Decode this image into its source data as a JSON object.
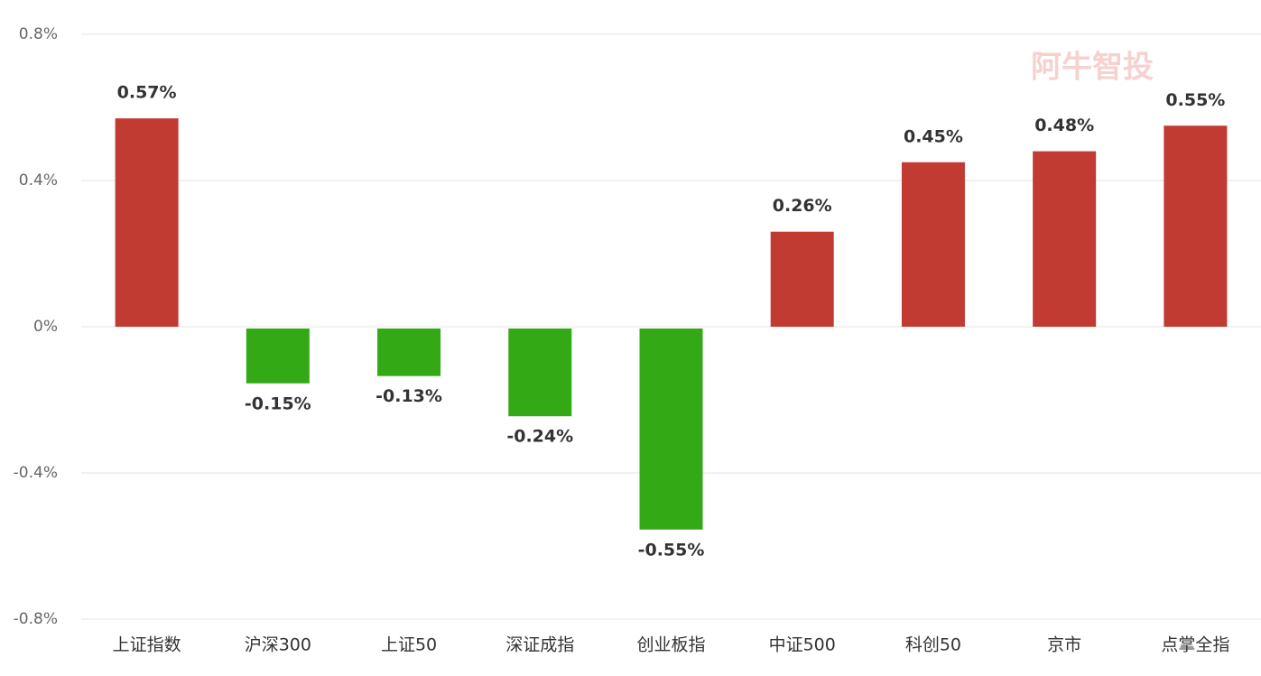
{
  "chart_data": {
    "type": "bar",
    "categories": [
      "上证指数",
      "沪深300",
      "上证50",
      "深证成指",
      "创业板指",
      "中证500",
      "科创50",
      "京市",
      "点掌全指"
    ],
    "values": [
      0.57,
      -0.15,
      -0.13,
      -0.24,
      -0.55,
      0.26,
      0.45,
      0.48,
      0.55
    ],
    "value_labels": [
      "0.57%",
      "-0.15%",
      "-0.13%",
      "-0.24%",
      "-0.55%",
      "0.26%",
      "0.45%",
      "0.48%",
      "0.55%"
    ],
    "colors": [
      "#c23b33",
      "#34a916",
      "#34a916",
      "#34a916",
      "#34a916",
      "#c23b33",
      "#c23b33",
      "#c23b33",
      "#c23b33"
    ],
    "ylim": [
      -0.8,
      0.8
    ],
    "yticks": [
      {
        "value": 0.8,
        "label": "0.8%"
      },
      {
        "value": 0.4,
        "label": "0.4%"
      },
      {
        "value": 0,
        "label": "0%"
      },
      {
        "value": -0.4,
        "label": "-0.4%"
      },
      {
        "value": -0.8,
        "label": "-0.8%"
      }
    ],
    "grid": true,
    "watermark": "阿牛智投"
  }
}
